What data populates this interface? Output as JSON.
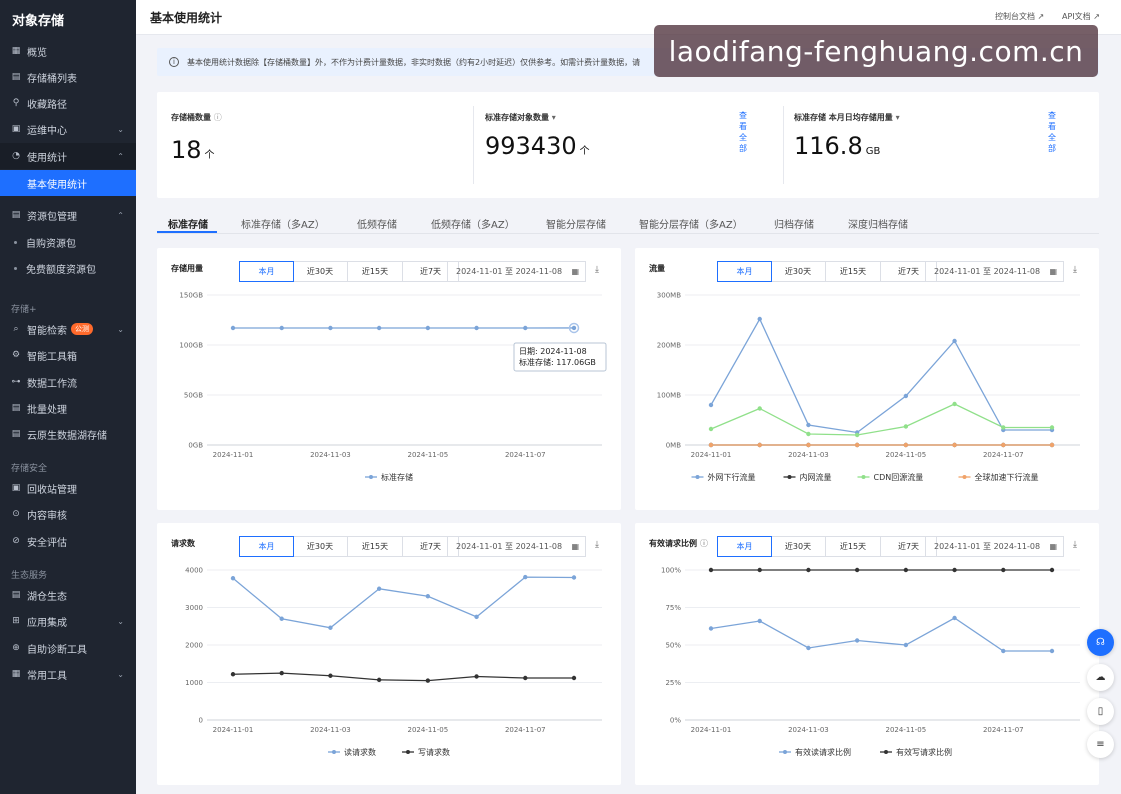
{
  "sidebar": {
    "title": "对象存储",
    "items": [
      {
        "label": "概览",
        "icon": "grid-icon"
      },
      {
        "label": "存储桶列表",
        "icon": "bucket-icon"
      },
      {
        "label": "收藏路径",
        "icon": "link-icon"
      },
      {
        "label": "运维中心",
        "icon": "calendar-icon"
      },
      {
        "label": "使用统计",
        "icon": "pie-icon"
      },
      {
        "label": "基本使用统计"
      },
      {
        "label": "资源包管理",
        "icon": "package-icon"
      },
      {
        "label": "自购资源包"
      },
      {
        "label": "免费额度资源包"
      },
      {
        "label": "智能检索",
        "icon": "search-doc-icon",
        "badge": "公测"
      },
      {
        "label": "智能工具箱",
        "icon": "toolbox-icon"
      },
      {
        "label": "数据工作流",
        "icon": "workflow-icon"
      },
      {
        "label": "批量处理",
        "icon": "batch-icon"
      },
      {
        "label": "云原生数据湖存储",
        "icon": "lake-icon"
      },
      {
        "label": "回收站管理",
        "icon": "recycle-icon"
      },
      {
        "label": "内容审核",
        "icon": "audit-icon"
      },
      {
        "label": "安全评估",
        "icon": "shield-icon"
      },
      {
        "label": "湖仓生态",
        "icon": "lakehouse-icon"
      },
      {
        "label": "应用集成",
        "icon": "integration-icon"
      },
      {
        "label": "自助诊断工具",
        "icon": "diagnose-icon"
      },
      {
        "label": "常用工具",
        "icon": "tools-icon"
      }
    ],
    "groups": [
      "存储+",
      "存储安全",
      "生态服务"
    ]
  },
  "header": {
    "title": "基本使用统计",
    "links": [
      "控制台文档",
      "API文档"
    ]
  },
  "notice": "基本使用统计数据除【存储桶数量】外，不作为计费计量数据，非实时数据（约有2小时延迟）仅供参考。如需计费计量数据，请",
  "watermark": "laodifang-fenghuang.com.cn",
  "summary": {
    "bucket_count_label": "存储桶数量",
    "bucket_count": "18",
    "bucket_unit": "个",
    "objects_label": "标准存储对象数量",
    "objects": "993430",
    "objects_unit": "个",
    "storage_label": "标准存储 本月日均存储用量",
    "storage": "116.8",
    "storage_unit": "GB",
    "view_all": "查看全部"
  },
  "tabs": [
    "标准存储",
    "标准存储（多AZ）",
    "低频存储",
    "低频存储（多AZ）",
    "智能分层存储",
    "智能分层存储（多AZ）",
    "归档存储",
    "深度归档存储"
  ],
  "range_buttons": [
    "本月",
    "近30天",
    "近15天",
    "近7天"
  ],
  "date_range": "2024-11-01 至 2024-11-08",
  "chart_data": [
    {
      "type": "line",
      "title": "存储用量",
      "x": [
        "2024-11-01",
        "2024-11-02",
        "2024-11-03",
        "2024-11-04",
        "2024-11-05",
        "2024-11-06",
        "2024-11-07",
        "2024-11-08"
      ],
      "x_tick_labels": [
        "2024-11-01",
        "2024-11-03",
        "2024-11-05",
        "2024-11-07"
      ],
      "y_ticks": [
        "0GB",
        "50GB",
        "100GB",
        "150GB"
      ],
      "ylim": [
        0,
        150
      ],
      "series": [
        {
          "name": "标准存储",
          "color": "#7ba4d8",
          "values": [
            117,
            117,
            117,
            117,
            117,
            117,
            117,
            117.06
          ]
        }
      ],
      "tooltip": {
        "line1": "日期: 2024-11-08",
        "line2": "标准存储: 117.06GB"
      }
    },
    {
      "type": "line",
      "title": "流量",
      "x": [
        "2024-11-01",
        "2024-11-02",
        "2024-11-03",
        "2024-11-04",
        "2024-11-05",
        "2024-11-06",
        "2024-11-07",
        "2024-11-08"
      ],
      "x_tick_labels": [
        "2024-11-01",
        "2024-11-03",
        "2024-11-05",
        "2024-11-07"
      ],
      "y_ticks": [
        "0MB",
        "100MB",
        "200MB",
        "300MB"
      ],
      "ylim": [
        0,
        300
      ],
      "series": [
        {
          "name": "外网下行流量",
          "color": "#7ba4d8",
          "values": [
            80,
            252,
            40,
            25,
            98,
            208,
            30,
            30
          ]
        },
        {
          "name": "内网流量",
          "color": "#333333",
          "values": [
            0,
            0,
            0,
            0,
            0,
            0,
            0,
            0
          ]
        },
        {
          "name": "CDN回源流量",
          "color": "#90e08a",
          "values": [
            32,
            73,
            22,
            20,
            37,
            82,
            35,
            35
          ]
        },
        {
          "name": "全球加速下行流量",
          "color": "#f0a36a",
          "values": [
            0,
            0,
            0,
            0,
            0,
            0,
            0,
            0
          ]
        }
      ]
    },
    {
      "type": "line",
      "title": "请求数",
      "x": [
        "2024-11-01",
        "2024-11-02",
        "2024-11-03",
        "2024-11-04",
        "2024-11-05",
        "2024-11-06",
        "2024-11-07",
        "2024-11-08"
      ],
      "x_tick_labels": [
        "2024-11-01",
        "2024-11-03",
        "2024-11-05",
        "2024-11-07"
      ],
      "y_ticks": [
        "0",
        "1000",
        "2000",
        "3000",
        "4000"
      ],
      "ylim": [
        0,
        4000
      ],
      "series": [
        {
          "name": "读请求数",
          "color": "#7ba4d8",
          "values": [
            3780,
            2700,
            2460,
            3500,
            3300,
            2750,
            3810,
            3800
          ]
        },
        {
          "name": "写请求数",
          "color": "#333333",
          "values": [
            1220,
            1250,
            1180,
            1070,
            1050,
            1160,
            1120,
            1120
          ]
        }
      ]
    },
    {
      "type": "line",
      "title": "有效请求比例",
      "x": [
        "2024-11-01",
        "2024-11-02",
        "2024-11-03",
        "2024-11-04",
        "2024-11-05",
        "2024-11-06",
        "2024-11-07",
        "2024-11-08"
      ],
      "x_tick_labels": [
        "2024-11-01",
        "2024-11-03",
        "2024-11-05",
        "2024-11-07"
      ],
      "y_ticks": [
        "0%",
        "25%",
        "50%",
        "75%",
        "100%"
      ],
      "ylim": [
        0,
        100
      ],
      "series": [
        {
          "name": "有效读请求比例",
          "color": "#7ba4d8",
          "values": [
            61,
            66,
            48,
            53,
            50,
            68,
            46,
            46
          ]
        },
        {
          "name": "有效写请求比例",
          "color": "#333333",
          "values": [
            100,
            100,
            100,
            100,
            100,
            100,
            100,
            100
          ]
        }
      ]
    }
  ]
}
